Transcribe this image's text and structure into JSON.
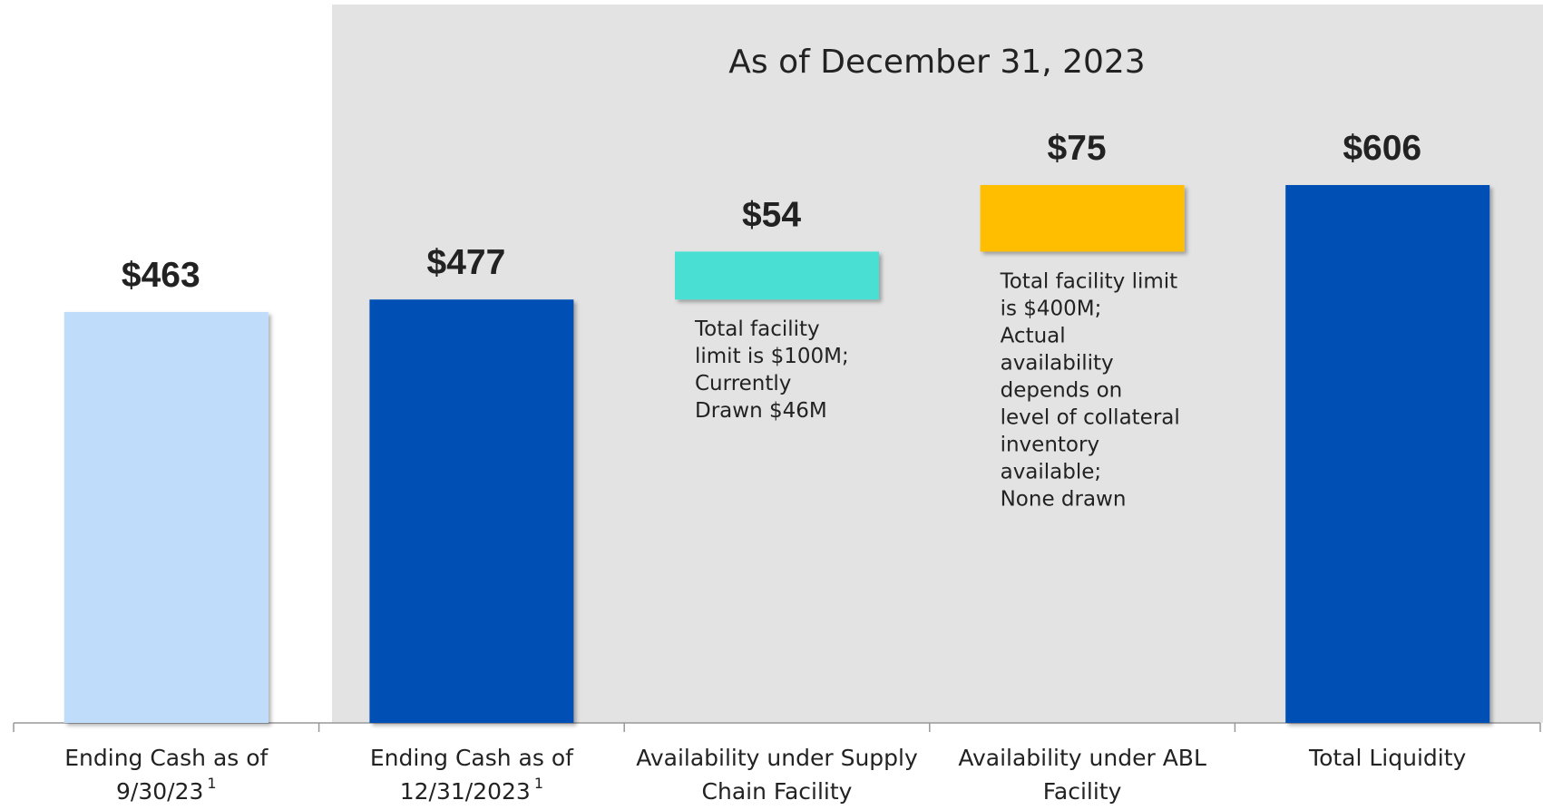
{
  "chart_data": {
    "type": "waterfall",
    "title": "As of December 31, 2023",
    "categories": [
      [
        "Ending Cash as of",
        "9/30/23"
      ],
      [
        "Ending Cash as of",
        "12/31/2023"
      ],
      [
        "Availability under Supply",
        "Chain Facility"
      ],
      [
        "Availability under ABL",
        "Facility"
      ],
      [
        "Total Liquidity"
      ]
    ],
    "footnotes": [
      "1",
      "1",
      null,
      null,
      null
    ],
    "measure": [
      "absolute",
      "absolute",
      "relative",
      "relative",
      "total"
    ],
    "values": [
      463,
      477,
      54,
      75,
      606
    ],
    "value_labels": [
      "$463",
      "$477",
      "$54",
      "$75",
      "$606"
    ],
    "colors": [
      "#bfdcfb",
      "#0050b5",
      "#48dfd2",
      "#ffbe00",
      "#0050b5"
    ],
    "annotations": [
      null,
      null,
      [
        "Total facility",
        "limit is $100M;",
        "Currently",
        "Drawn $46M"
      ],
      [
        "Total facility limit",
        "is $400M;",
        "Actual",
        "availability",
        "depends on",
        "level of collateral",
        "inventory",
        "available;",
        "None drawn"
      ],
      null
    ]
  }
}
